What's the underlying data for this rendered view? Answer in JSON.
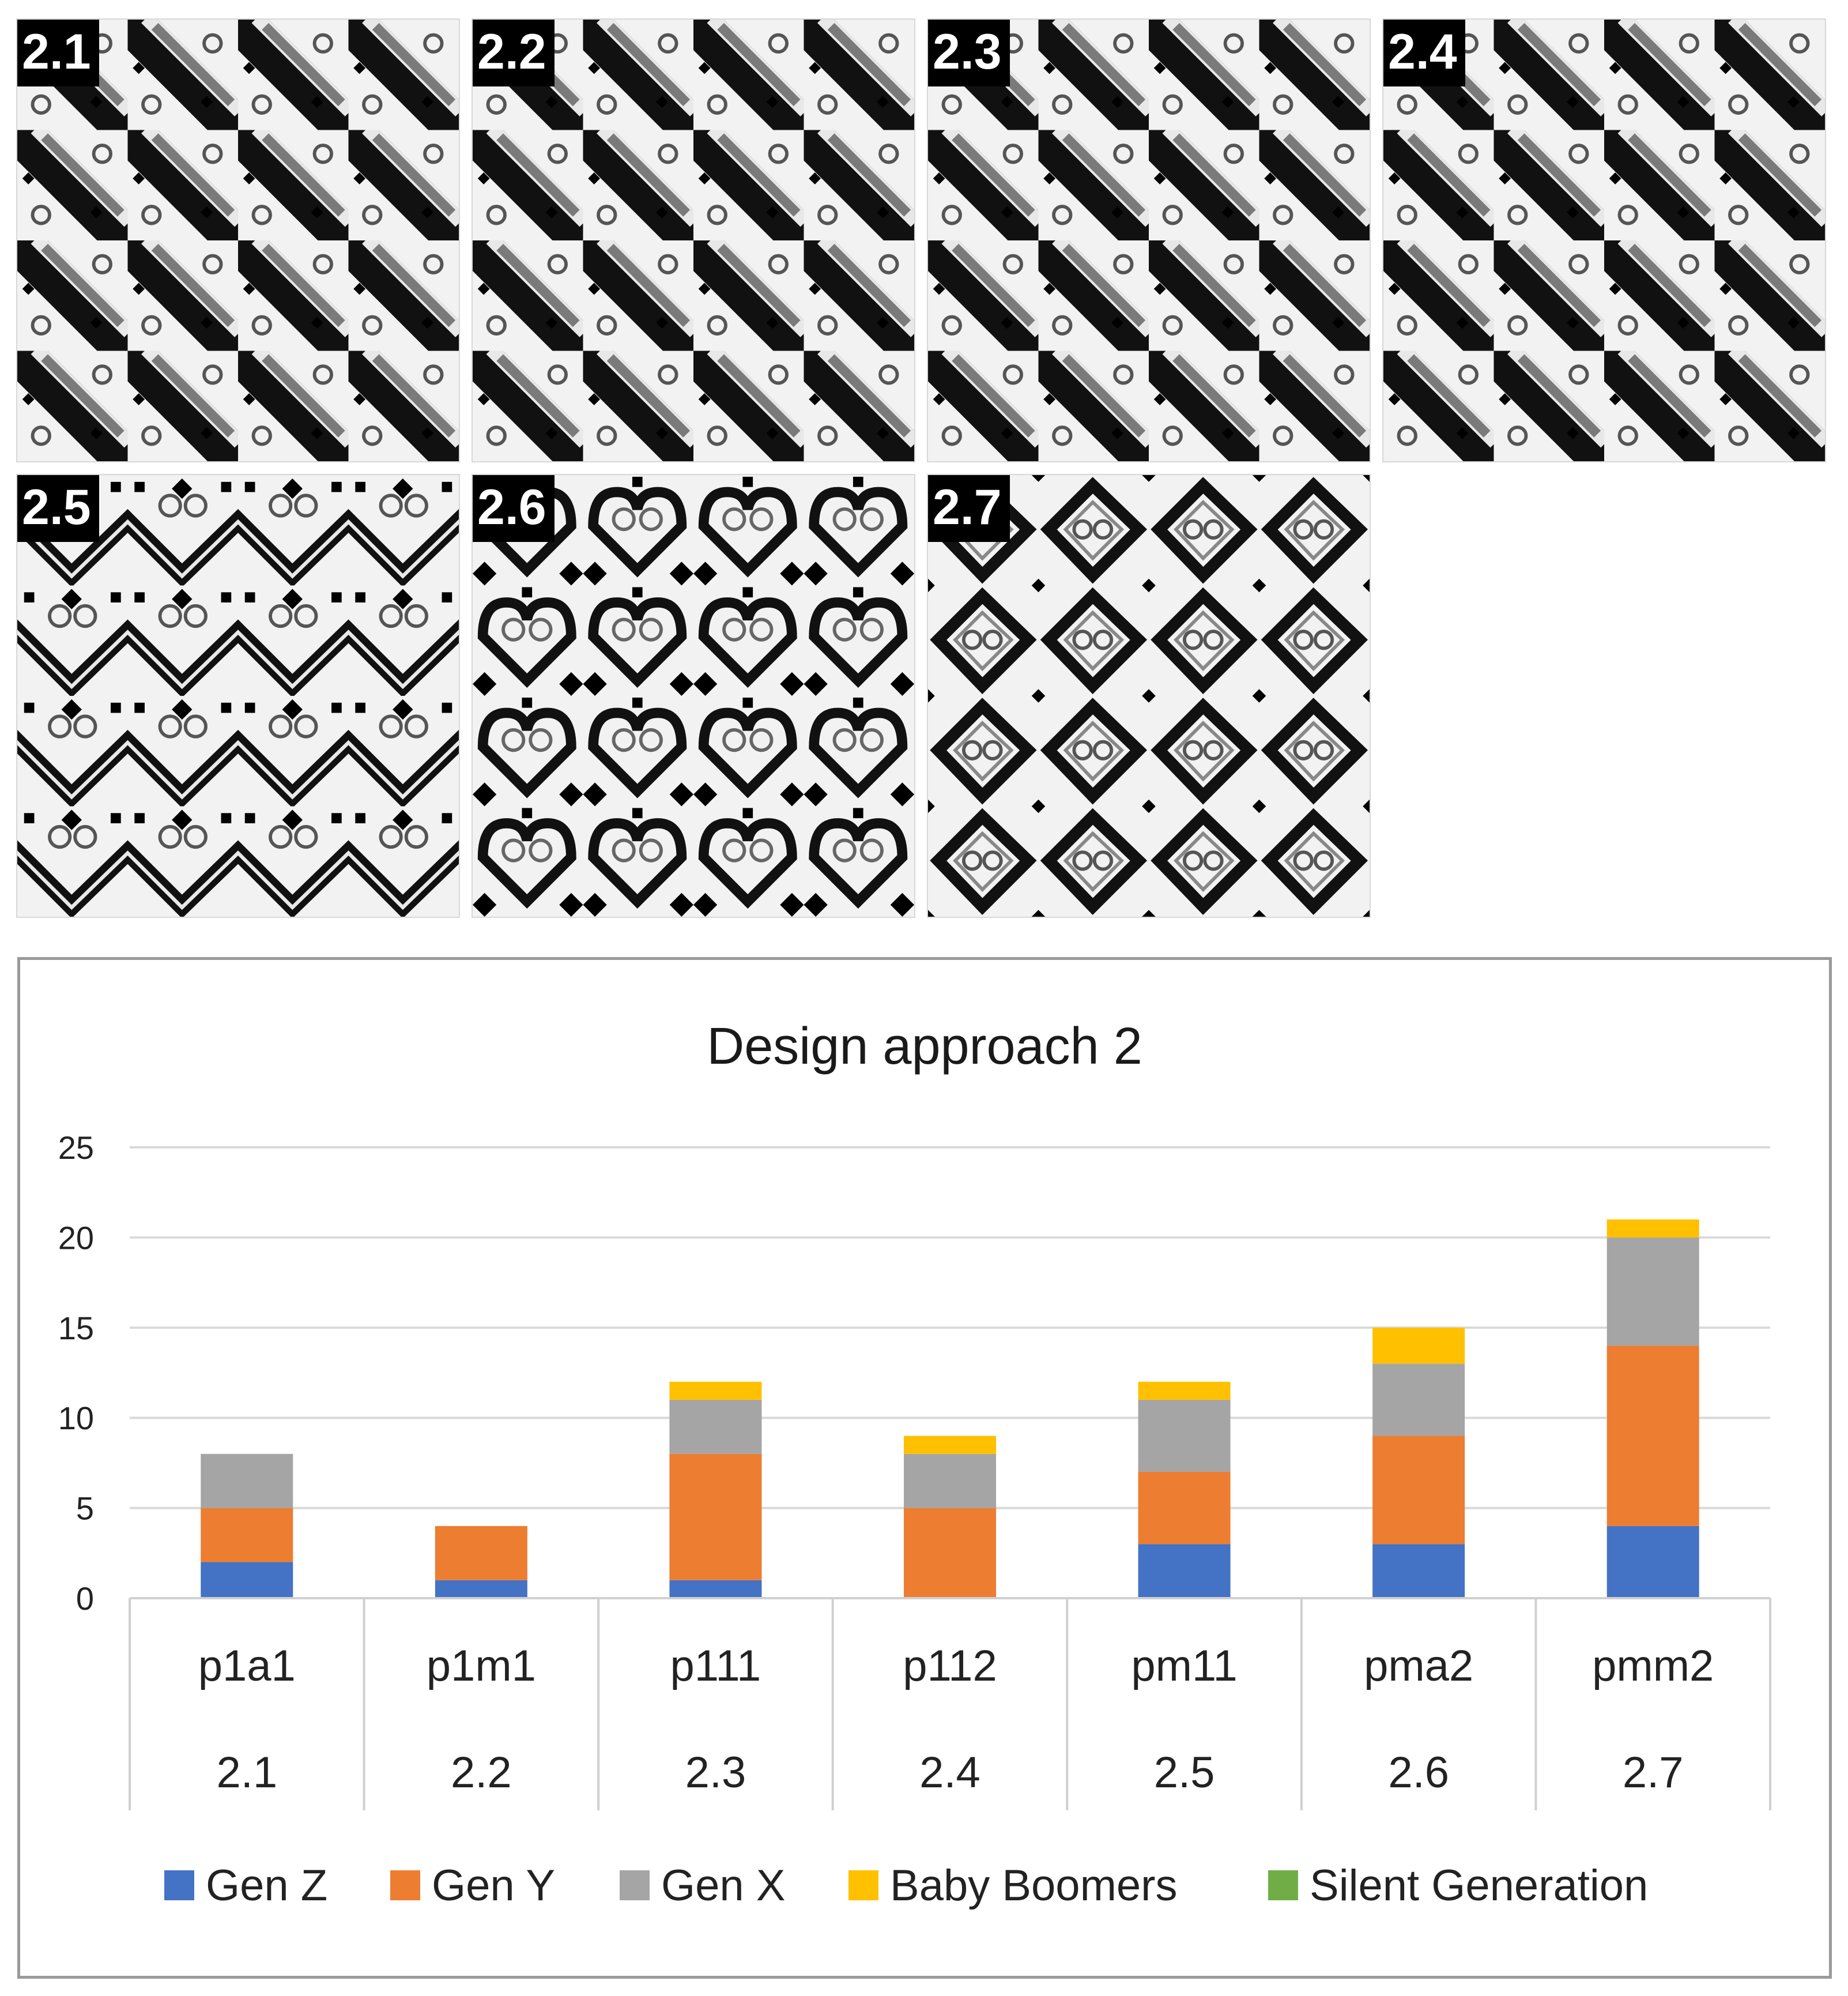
{
  "tiles": [
    {
      "label": "2.1",
      "variant": "slant"
    },
    {
      "label": "2.2",
      "variant": "slant"
    },
    {
      "label": "2.3",
      "variant": "slant"
    },
    {
      "label": "2.4",
      "variant": "slant"
    },
    {
      "label": "2.5",
      "variant": "chevron"
    },
    {
      "label": "2.6",
      "variant": "heart"
    },
    {
      "label": "2.7",
      "variant": "diamond"
    }
  ],
  "chart_data": {
    "type": "bar",
    "stacked": true,
    "title": "Design approach 2",
    "categories": [
      "p1a1",
      "p1m1",
      "p111",
      "p112",
      "pm11",
      "pma2",
      "pmm2"
    ],
    "sub_categories": [
      "2.1",
      "2.2",
      "2.3",
      "2.4",
      "2.5",
      "2.6",
      "2.7"
    ],
    "ylim": [
      0,
      25
    ],
    "yticks": [
      0,
      5,
      10,
      15,
      20,
      25
    ],
    "grid": true,
    "legend_position": "bottom",
    "series": [
      {
        "name": "Gen Z",
        "color": "#4472C4",
        "values": [
          2,
          1,
          1,
          0,
          3,
          3,
          4
        ]
      },
      {
        "name": "Gen Y",
        "color": "#ED7D31",
        "values": [
          3,
          3,
          7,
          5,
          4,
          6,
          10
        ]
      },
      {
        "name": "Gen X",
        "color": "#A5A5A5",
        "values": [
          3,
          0,
          3,
          3,
          4,
          4,
          6
        ]
      },
      {
        "name": "Baby Boomers",
        "color": "#FFC000",
        "values": [
          0,
          0,
          1,
          1,
          1,
          2,
          1
        ]
      },
      {
        "name": "Silent Generation",
        "color": "#70AD47",
        "values": [
          0,
          0,
          0,
          0,
          0,
          0,
          0
        ]
      }
    ]
  }
}
